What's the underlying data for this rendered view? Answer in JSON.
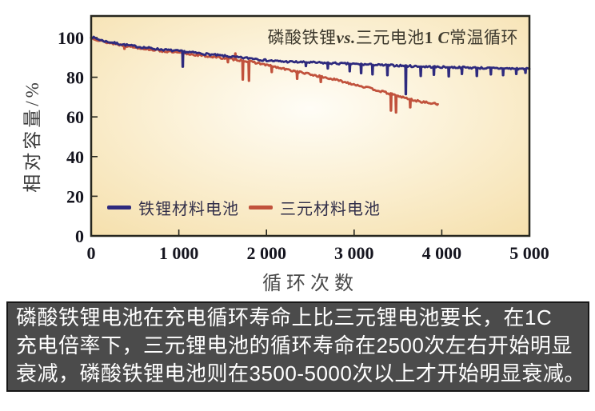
{
  "chart_data": {
    "type": "line",
    "title": "磷酸铁锂vs.三元电池1 C常温循环",
    "title_parts": {
      "p1": "磷酸铁锂",
      "p2": "vs.",
      "p3": "三元电池",
      "p4": "1 ",
      "p5": "C",
      "p6": "常温循环"
    },
    "xlabel": "循环次数",
    "ylabel": "相对容量/%",
    "xlim": [
      0,
      5000
    ],
    "ylim": [
      0,
      111
    ],
    "grid": false,
    "legend_position": "lower left",
    "x_ticks": [
      0,
      1000,
      2000,
      3000,
      4000,
      5000
    ],
    "x_tick_labels": [
      "0",
      "1 000",
      "2 000",
      "3 000",
      "4 000",
      "5 000"
    ],
    "y_ticks": [
      0,
      20,
      40,
      60,
      80,
      100
    ],
    "y_tick_labels": [
      "0",
      "20",
      "40",
      "60",
      "80",
      "100"
    ],
    "plot_bg_center": "#fffdf6",
    "plot_bg_edge": "#f5dfab",
    "plot_border_color": "#26261e",
    "series": [
      {
        "name": "铁锂材料电池",
        "color": "#2e2a7e",
        "seed": 7,
        "x": [
          0,
          150,
          350,
          550,
          800,
          1000,
          1250,
          1500,
          1700,
          1880,
          1950,
          2150,
          2400,
          2600,
          2900,
          3100,
          3300,
          3500,
          3750,
          4000,
          4250,
          4500,
          4750,
          5000
        ],
        "values": [
          100.3,
          98.2,
          96.6,
          95.3,
          94.0,
          93.2,
          92.0,
          90.8,
          89.9,
          89.4,
          88.7,
          88.0,
          87.6,
          87.3,
          86.8,
          86.5,
          86.1,
          85.9,
          85.4,
          85.1,
          84.9,
          84.6,
          84.4,
          84.2
        ],
        "spikes": [
          {
            "x": 1045,
            "v": 85.3
          },
          {
            "x": 2450,
            "v": 85.6
          },
          {
            "x": 2700,
            "v": 84.4
          },
          {
            "x": 2950,
            "v": 83.0
          },
          {
            "x": 3080,
            "v": 82.0
          },
          {
            "x": 3210,
            "v": 81.4
          },
          {
            "x": 3380,
            "v": 81.0
          },
          {
            "x": 3590,
            "v": 71.4
          },
          {
            "x": 3760,
            "v": 80.6
          },
          {
            "x": 3910,
            "v": 81.2
          },
          {
            "x": 4080,
            "v": 80.4
          },
          {
            "x": 4230,
            "v": 81.6
          },
          {
            "x": 4400,
            "v": 80.6
          },
          {
            "x": 4560,
            "v": 81.4
          },
          {
            "x": 4700,
            "v": 81.0
          },
          {
            "x": 4850,
            "v": 81.6
          },
          {
            "x": 4955,
            "v": 82.2
          }
        ]
      },
      {
        "name": "三元材料电池",
        "color": "#c1523c",
        "seed": 13,
        "x": [
          0,
          150,
          350,
          550,
          800,
          1000,
          1250,
          1500,
          1700,
          1900,
          2150,
          2400,
          2600,
          2800,
          3050,
          3300,
          3500,
          3700,
          3900,
          3955
        ],
        "values": [
          100.0,
          97.8,
          96.2,
          94.8,
          93.3,
          92.3,
          91.0,
          89.7,
          88.6,
          87.2,
          84.6,
          82.4,
          80.5,
          78.6,
          75.9,
          73.0,
          70.5,
          68.2,
          66.7,
          66.4
        ],
        "spikes": [
          {
            "x": 380,
            "v": 94.3
          },
          {
            "x": 1560,
            "v": 87.5
          },
          {
            "x": 1645,
            "v": 92.0
          },
          {
            "x": 1730,
            "v": 78.8
          },
          {
            "x": 1800,
            "v": 78.2
          },
          {
            "x": 2060,
            "v": 82.6
          },
          {
            "x": 2350,
            "v": 79.2
          },
          {
            "x": 2620,
            "v": 77.6
          },
          {
            "x": 3420,
            "v": 63.2
          },
          {
            "x": 3478,
            "v": 62.2
          },
          {
            "x": 3640,
            "v": 64.8
          }
        ]
      }
    ]
  },
  "caption": {
    "lines": [
      "磷酸铁锂电池在充电循环寿命上比三元锂电池要长，在1C",
      "充电倍率下，三元锂电池的循环寿命在2500次左右开始明显",
      "衰减，磷酸铁锂电池则在3500-5000次以上才开始明显衰减。"
    ]
  }
}
